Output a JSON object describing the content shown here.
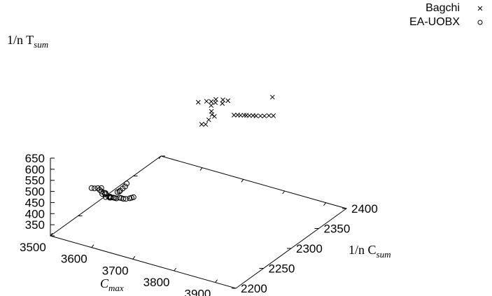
{
  "chart_data": {
    "type": "scatter3d",
    "axes": {
      "x": {
        "label": "C",
        "label_sub": "max",
        "range": [
          3500,
          3950
        ],
        "ticks": [
          3500,
          3600,
          3700,
          3800,
          3900
        ]
      },
      "y": {
        "label": "1/n C",
        "label_sub": "sum",
        "range": [
          2200,
          2400
        ],
        "ticks": [
          2200,
          2250,
          2300,
          2350,
          2400
        ]
      },
      "z": {
        "label": "1/n T",
        "label_sub": "sum",
        "range": [
          300,
          650
        ],
        "ticks": [
          350,
          400,
          450,
          500,
          550,
          600,
          650
        ]
      }
    },
    "legend_position": "top-right",
    "series": [
      {
        "name": "Bagchi",
        "marker": "cross",
        "points": [
          [
            3628,
            2372,
            660
          ],
          [
            3640,
            2378,
            660
          ],
          [
            3649,
            2380,
            660
          ],
          [
            3654,
            2376,
            652
          ],
          [
            3652,
            2386,
            660
          ],
          [
            3659,
            2380,
            660
          ],
          [
            3660,
            2372,
            636
          ],
          [
            3673,
            2382,
            660
          ],
          [
            3665,
            2389,
            660
          ],
          [
            3676,
            2390,
            660
          ],
          [
            3655,
            2358,
            600
          ],
          [
            3670,
            2370,
            622
          ],
          [
            3662,
            2360,
            600
          ],
          [
            3663,
            2365,
            612
          ],
          [
            3664,
            2370,
            627
          ],
          [
            3700,
            2383,
            620
          ],
          [
            3706,
            2385,
            620
          ],
          [
            3712,
            2386,
            620
          ],
          [
            3718,
            2388,
            620
          ],
          [
            3722,
            2389,
            620
          ],
          [
            3728,
            2390,
            620
          ],
          [
            3734,
            2392,
            620
          ],
          [
            3740,
            2393,
            620
          ],
          [
            3748,
            2395,
            620
          ],
          [
            3755,
            2397,
            620
          ],
          [
            3762,
            2400,
            620
          ],
          [
            3770,
            2402,
            620
          ],
          [
            3745,
            2419,
            660
          ]
        ]
      },
      {
        "name": "EA-UOBX",
        "marker": "circle",
        "points": [
          [
            3510,
            2267,
            400
          ],
          [
            3516,
            2268,
            400
          ],
          [
            3521,
            2270,
            400
          ],
          [
            3523,
            2272,
            390
          ],
          [
            3527,
            2272,
            400
          ],
          [
            3530,
            2270,
            390
          ],
          [
            3532,
            2270,
            380
          ],
          [
            3533,
            2273,
            380
          ],
          [
            3536,
            2273,
            380
          ],
          [
            3538,
            2271,
            380
          ],
          [
            3540,
            2270,
            370
          ],
          [
            3545,
            2272,
            370
          ],
          [
            3547,
            2273,
            370
          ],
          [
            3549,
            2271,
            370
          ],
          [
            3551,
            2272,
            370
          ],
          [
            3555,
            2273,
            370
          ],
          [
            3558,
            2273,
            370
          ],
          [
            3562,
            2273,
            370
          ],
          [
            3566,
            2276,
            370
          ],
          [
            3570,
            2276,
            370
          ],
          [
            3575,
            2276,
            370
          ],
          [
            3580,
            2277,
            370
          ],
          [
            3585,
            2280,
            370
          ],
          [
            3587,
            2282,
            370
          ],
          [
            3589,
            2284,
            370
          ],
          [
            3554,
            2281,
            380
          ],
          [
            3556,
            2283,
            380
          ],
          [
            3558,
            2283,
            385
          ],
          [
            3560,
            2286,
            390
          ],
          [
            3562,
            2289,
            395
          ],
          [
            3563,
            2291,
            405
          ]
        ]
      }
    ]
  }
}
